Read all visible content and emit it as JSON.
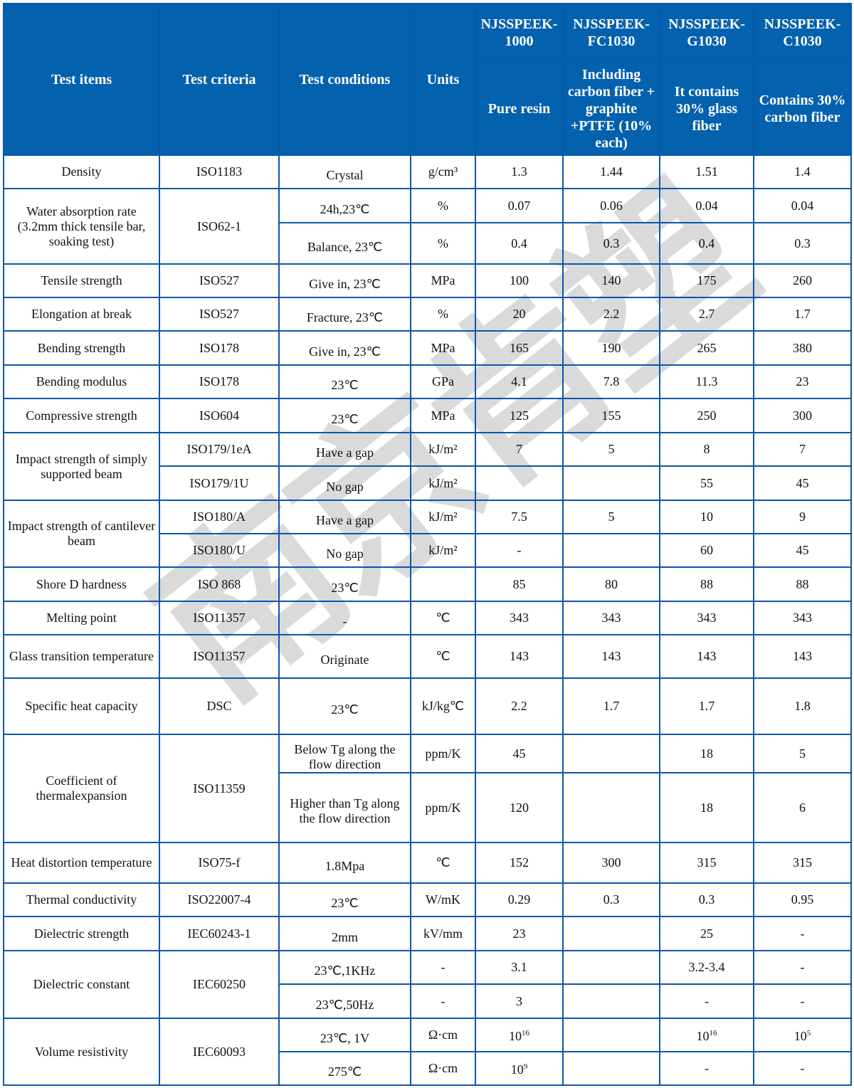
{
  "watermark": "南京肯塑",
  "colors": {
    "header_bg": "#0361ae",
    "border": "#0b58a8",
    "header_text": "#ffffff"
  },
  "header": {
    "test_items": "Test items",
    "test_criteria": "Test criteria",
    "test_conditions": "Test conditions",
    "units": "Units",
    "products": [
      {
        "name": "NJSSPEEK-1000",
        "desc": "Pure resin"
      },
      {
        "name": "NJSSPEEK-FC1030",
        "desc": "Including carbon fiber + graphite +PTFE (10% each)"
      },
      {
        "name": "NJSSPEEK-G1030",
        "desc": "It contains 30% glass fiber"
      },
      {
        "name": "NJSSPEEK-C1030",
        "desc": "Contains 30% carbon fiber"
      }
    ]
  },
  "rows": [
    {
      "item": "Density",
      "criteria": "ISO1183",
      "subs": [
        {
          "cond": "Crystal",
          "unit": "g/cm³",
          "values": [
            "1.3",
            "1.44",
            "1.51",
            "1.4"
          ]
        }
      ]
    },
    {
      "item": "Water absorption rate (3.2mm thick tensile bar, soaking test)",
      "criteria": "ISO62-1",
      "subs": [
        {
          "cond": "24h,23℃",
          "unit": "%",
          "values": [
            "0.07",
            "0.06",
            "0.04",
            "0.04"
          ]
        },
        {
          "cond": "Balance, 23℃",
          "unit": "%",
          "values": [
            "0.4",
            "0.3",
            "0.4",
            "0.3"
          ]
        }
      ]
    },
    {
      "item": "Tensile strength",
      "criteria": "ISO527",
      "subs": [
        {
          "cond": "Give in, 23℃",
          "unit": "MPa",
          "values": [
            "100",
            "140",
            "175",
            "260"
          ]
        }
      ]
    },
    {
      "item": "Elongation at break",
      "criteria": "ISO527",
      "subs": [
        {
          "cond": "Fracture, 23℃",
          "unit": "%",
          "values": [
            "20",
            "2.2",
            "2.7",
            "1.7"
          ]
        }
      ]
    },
    {
      "item": "Bending strength",
      "criteria": "ISO178",
      "subs": [
        {
          "cond": "Give in, 23℃",
          "unit": "MPa",
          "values": [
            "165",
            "190",
            "265",
            "380"
          ]
        }
      ]
    },
    {
      "item": "Bending modulus",
      "criteria": "ISO178",
      "subs": [
        {
          "cond": "23℃",
          "unit": "GPa",
          "values": [
            "4.1",
            "7.8",
            "11.3",
            "23"
          ]
        }
      ]
    },
    {
      "item": "Compressive strength",
      "criteria": "ISO604",
      "subs": [
        {
          "cond": "23℃",
          "unit": "MPa",
          "values": [
            "125",
            "155",
            "250",
            "300"
          ]
        }
      ]
    },
    {
      "item": "Impact strength of simply supported beam",
      "subs": [
        {
          "criteria": "ISO179/1eA",
          "cond": "Have a gap",
          "unit": "kJ/m²",
          "values": [
            "7",
            "5",
            "8",
            "7"
          ]
        },
        {
          "criteria": "ISO179/1U",
          "cond": "No gap",
          "unit": "kJ/m²",
          "values": [
            "",
            "",
            "55",
            "45"
          ]
        }
      ]
    },
    {
      "item": "Impact strength of cantilever beam",
      "subs": [
        {
          "criteria": "ISO180/A",
          "cond": "Have a gap",
          "unit": "kJ/m²",
          "values": [
            "7.5",
            "5",
            "10",
            "9"
          ]
        },
        {
          "criteria": "ISO180/U",
          "cond": "No gap",
          "unit": "kJ/m²",
          "values": [
            "-",
            "",
            "60",
            "45"
          ]
        }
      ]
    },
    {
      "item": "Shore D hardness",
      "criteria": "ISO 868",
      "subs": [
        {
          "cond": "23℃",
          "unit": "",
          "values": [
            "85",
            "80",
            "88",
            "88"
          ]
        }
      ]
    },
    {
      "item": "Melting point",
      "criteria": "ISO11357",
      "subs": [
        {
          "cond": "-",
          "unit": "℃",
          "values": [
            "343",
            "343",
            "343",
            "343"
          ]
        }
      ]
    },
    {
      "item": "Glass transition temperature",
      "criteria": "ISO11357",
      "subs": [
        {
          "cond": "Originate",
          "unit": "℃",
          "values": [
            "143",
            "143",
            "143",
            "143"
          ]
        }
      ]
    },
    {
      "item": "Specific heat capacity",
      "criteria": "DSC",
      "subs": [
        {
          "cond": "23℃",
          "unit": "kJ/kg℃",
          "values": [
            "2.2",
            "1.7",
            "1.7",
            "1.8"
          ]
        }
      ]
    },
    {
      "item": "Coefficient of thermalexpansion",
      "criteria": "ISO11359",
      "subs": [
        {
          "cond": "Below Tg along the flow direction",
          "unit": "ppm/K",
          "values": [
            "45",
            "",
            "18",
            "5"
          ]
        },
        {
          "cond": "Higher than Tg along the flow direction",
          "unit": "ppm/K",
          "values": [
            "120",
            "",
            "18",
            "6"
          ]
        }
      ]
    },
    {
      "item": "Heat distortion temperature",
      "criteria": "ISO75-f",
      "subs": [
        {
          "cond": "1.8Mpa",
          "unit": "℃",
          "values": [
            "152",
            "300",
            "315",
            "315"
          ]
        }
      ]
    },
    {
      "item": "Thermal conductivity",
      "criteria": "ISO22007-4",
      "subs": [
        {
          "cond": "23℃",
          "unit": "W/mK",
          "values": [
            "0.29",
            "0.3",
            "0.3",
            "0.95"
          ]
        }
      ]
    },
    {
      "item": "Dielectric strength",
      "criteria": "IEC60243-1",
      "subs": [
        {
          "cond": "2mm",
          "unit": "kV/mm",
          "values": [
            "23",
            "",
            "25",
            "-"
          ]
        }
      ]
    },
    {
      "item": "Dielectric constant",
      "criteria": "IEC60250",
      "subs": [
        {
          "cond": "23℃,1KHz",
          "unit": "-",
          "values": [
            "3.1",
            "",
            "3.2-3.4",
            "-"
          ]
        },
        {
          "cond": "23℃,50Hz",
          "unit": "-",
          "values": [
            "3",
            "",
            "-",
            "-"
          ]
        }
      ]
    },
    {
      "item": "Volume resistivity",
      "criteria": "IEC60093",
      "subs": [
        {
          "cond": "23℃, 1V",
          "unit": "Ω·cm",
          "values": [
            {
              "base": "10",
              "sup": "16"
            },
            "",
            {
              "base": "10",
              "sup": "16"
            },
            {
              "base": "10",
              "sup": "5"
            }
          ]
        },
        {
          "cond": "275℃",
          "unit": "Ω·cm",
          "values": [
            {
              "base": "10",
              "sup": "9"
            },
            "",
            "-",
            "-"
          ]
        }
      ]
    }
  ]
}
